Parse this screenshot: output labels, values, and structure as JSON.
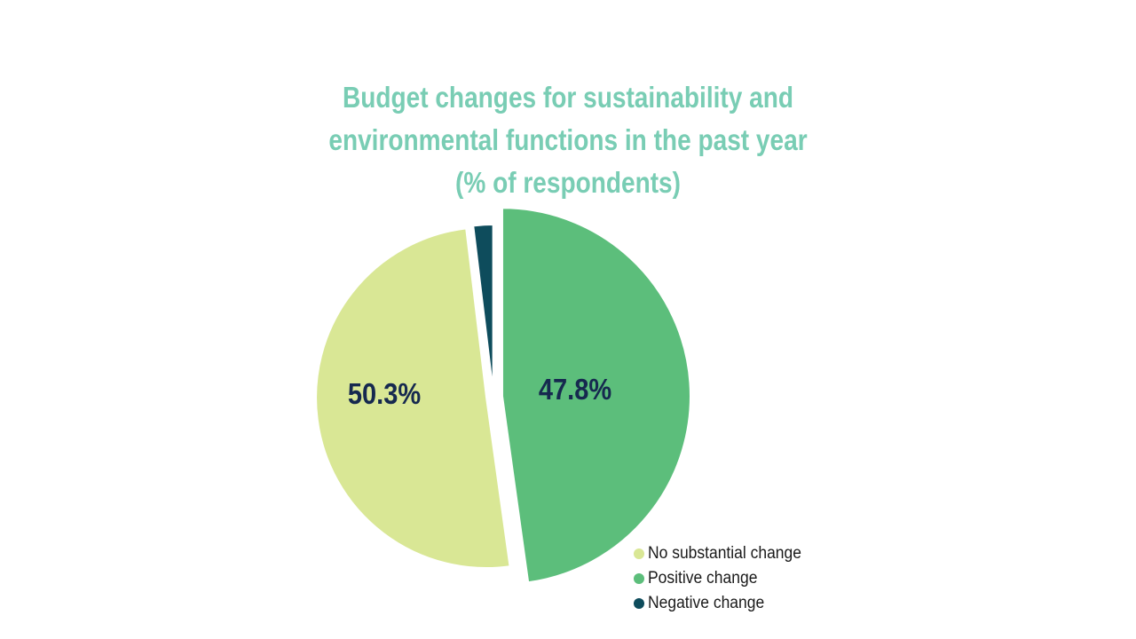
{
  "chart_data": {
    "type": "pie",
    "title": "Budget changes for sustainability and environmental functions in the past year (% of respondents)",
    "title_lines": [
      "Budget changes for sustainability and",
      "environmental functions in the past year",
      "(% of respondents)"
    ],
    "unit": "%",
    "start_angle_deg": 0,
    "direction": "clockwise",
    "center": [
      556,
      447
    ],
    "slices": [
      {
        "label": "Positive change",
        "value": 47.8,
        "value_label": "47.8%",
        "color": "#5CBE7B",
        "radius": 212,
        "explode": 10
      },
      {
        "label": "No substantial change",
        "value": 50.3,
        "value_label": "50.3%",
        "color": "#D9E795",
        "radius": 192,
        "explode": 8
      },
      {
        "label": "Negative change",
        "value": 1.9,
        "value_label": "",
        "color": "#0E4C5C",
        "radius": 188,
        "explode": 6
      }
    ],
    "legend": {
      "position": "bottom-right",
      "order": [
        1,
        0,
        2
      ]
    }
  },
  "styles": {
    "background": "#FFFFFF",
    "title_color": "#79CDB4",
    "value_label_color": "#16294F",
    "legend_text_color": "#1A1A1A",
    "slice_separator_color": "#FFFFFF"
  }
}
